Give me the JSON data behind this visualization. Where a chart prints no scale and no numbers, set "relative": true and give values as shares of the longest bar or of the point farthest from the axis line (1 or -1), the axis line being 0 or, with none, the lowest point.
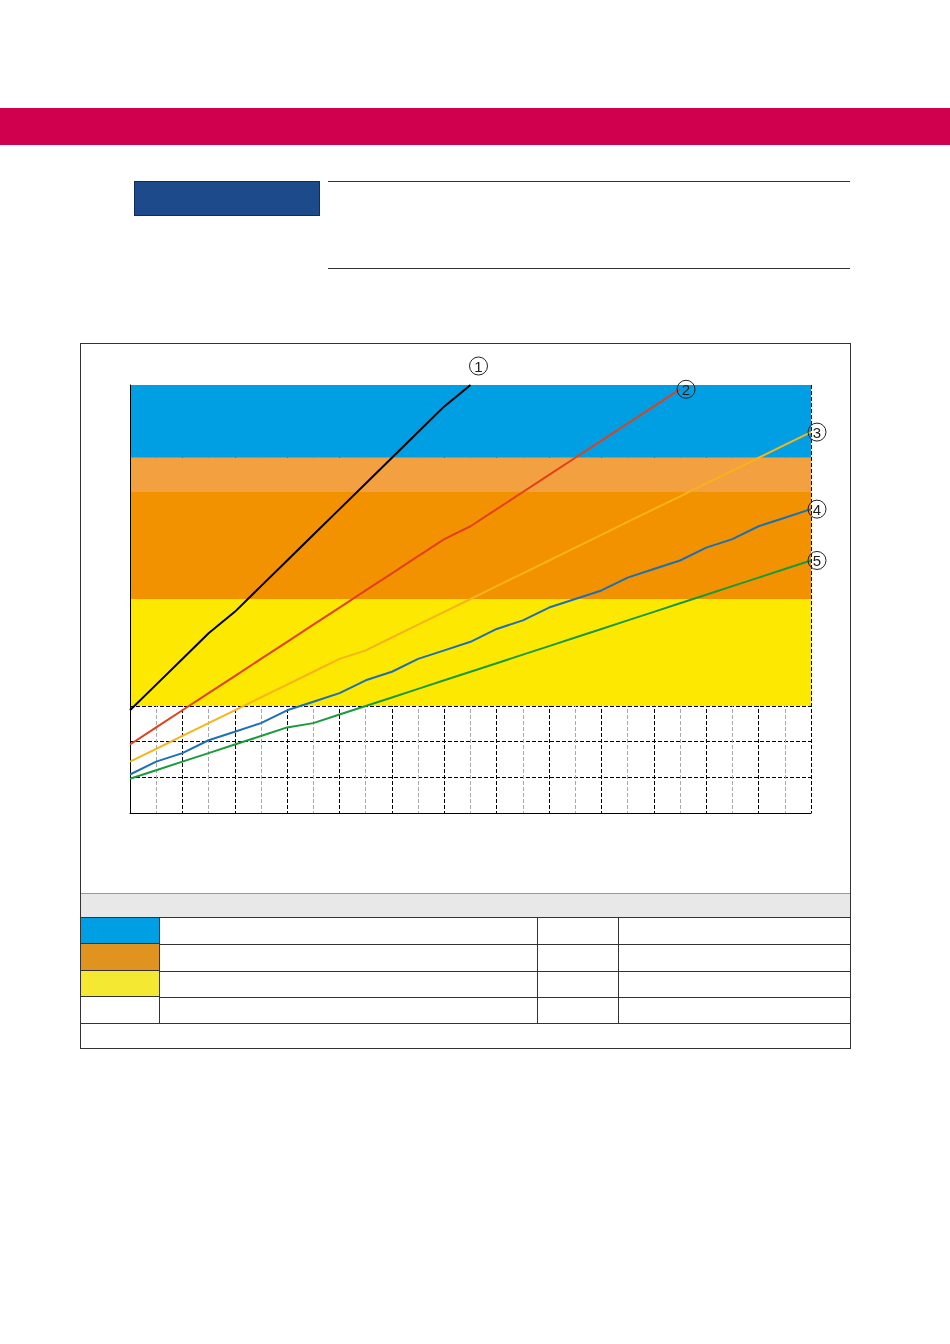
{
  "chart_data": {
    "type": "line",
    "relative": true,
    "grid": true,
    "marker": "none",
    "line_style": "solid",
    "categories": [
      null,
      null,
      null,
      null,
      null,
      null,
      null,
      null,
      null,
      null,
      null,
      null,
      null,
      null,
      null,
      null,
      null,
      null,
      null,
      null,
      null,
      null,
      null,
      null,
      null,
      null,
      null
    ],
    "series": [
      {
        "name": "1",
        "color": "#000000",
        "values": [
          0.24,
          0.3,
          0.36,
          0.42,
          0.47,
          0.53,
          0.59,
          0.65,
          0.71,
          0.77,
          0.83,
          0.89,
          0.95,
          1.0,
          null,
          null,
          null,
          null,
          null,
          null,
          null,
          null,
          null,
          null,
          null,
          null,
          null
        ]
      },
      {
        "name": "2",
        "color": "#e2401c",
        "values": [
          0.16,
          0.2,
          0.24,
          0.28,
          0.32,
          0.36,
          0.4,
          0.44,
          0.48,
          0.52,
          0.56,
          0.6,
          0.64,
          0.67,
          0.71,
          0.75,
          0.79,
          0.83,
          0.87,
          0.91,
          0.95,
          0.99,
          null,
          null,
          null,
          null,
          null
        ]
      },
      {
        "name": "3",
        "color": "#f6b31a",
        "values": [
          0.12,
          0.15,
          0.18,
          0.21,
          0.24,
          0.27,
          0.3,
          0.33,
          0.36,
          0.38,
          0.41,
          0.44,
          0.47,
          0.5,
          0.53,
          0.56,
          0.59,
          0.62,
          0.65,
          0.68,
          0.71,
          0.74,
          0.77,
          0.8,
          0.83,
          0.86,
          0.89
        ]
      },
      {
        "name": "4",
        "color": "#1f6fb5",
        "values": [
          0.09,
          0.12,
          0.14,
          0.17,
          0.19,
          0.21,
          0.24,
          0.26,
          0.28,
          0.31,
          0.33,
          0.36,
          0.38,
          0.4,
          0.43,
          0.45,
          0.48,
          0.5,
          0.52,
          0.55,
          0.57,
          0.59,
          0.62,
          0.64,
          0.67,
          0.69,
          0.71
        ]
      },
      {
        "name": "5",
        "color": "#1b9a3a",
        "values": [
          0.08,
          0.1,
          0.12,
          0.14,
          0.16,
          0.18,
          0.2,
          0.21,
          0.23,
          0.25,
          0.27,
          0.29,
          0.31,
          0.33,
          0.35,
          0.37,
          0.39,
          0.41,
          0.43,
          0.45,
          0.47,
          0.49,
          0.51,
          0.53,
          0.55,
          0.57,
          0.59
        ]
      }
    ],
    "bands": [
      {
        "axis": "y",
        "from": 0.25,
        "to": 0.5,
        "color": "#fce800"
      },
      {
        "axis": "y",
        "from": 0.5,
        "to": 0.75,
        "color": "#f39200"
      },
      {
        "axis": "y",
        "from": 0.75,
        "to": 0.83,
        "color": "#f3a040"
      },
      {
        "axis": "y",
        "from": 0.83,
        "to": 1,
        "color": "#009fe3"
      }
    ]
  }
}
